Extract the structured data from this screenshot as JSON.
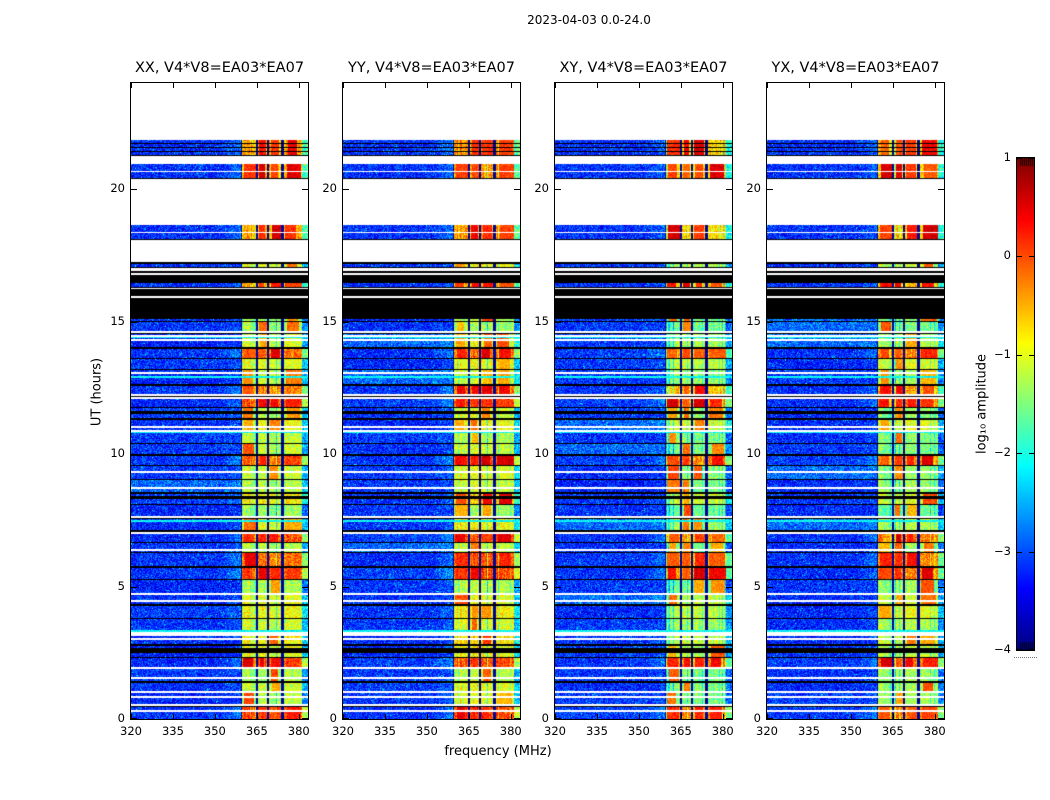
{
  "figure": {
    "title": "2023-04-03 0.0-24.0",
    "background_color": "#ffffff",
    "frame_color": "#000000"
  },
  "chart_data": {
    "type": "heatmap",
    "figure_title": "2023-04-03 0.0-24.0",
    "xlabel": "frequency (MHz)",
    "ylabel": "UT (hours)",
    "x_range_mhz": [
      320,
      383.3
    ],
    "x_ticks_mhz": [
      320,
      335,
      350,
      365,
      380
    ],
    "y_range_hours": [
      0,
      24
    ],
    "y_ticks_hours": [
      0,
      5,
      10,
      15,
      20
    ],
    "panels": [
      {
        "id": "XX",
        "title": "XX, V4*V8=EA03*EA07",
        "band_level_offset": 0,
        "seed": 7
      },
      {
        "id": "YY",
        "title": "YY, V4*V8=EA03*EA07",
        "band_level_offset": 0.12,
        "seed": 13
      },
      {
        "id": "XY",
        "title": "XY, V4*V8=EA03*EA07",
        "band_level_offset": -0.22,
        "seed": 21
      },
      {
        "id": "YX",
        "title": "YX, V4*V8=EA03*EA07",
        "band_level_offset": -0.18,
        "seed": 42
      }
    ],
    "colorbar": {
      "label": "log₁₀ amplitude",
      "range": [
        -4,
        1
      ],
      "ticks": [
        1,
        0,
        -1,
        -2,
        -3,
        -4
      ],
      "colormap": "jet"
    },
    "background": {
      "mean_log10": -3.2,
      "speckle_log10": -2.6
    },
    "rfi_band": {
      "extent_mhz": [
        359.6,
        381.3
      ],
      "subbands_mhz": [
        [
          359.6,
          364.6
        ],
        [
          365.4,
          368.6
        ],
        [
          369.3,
          373.6
        ],
        [
          374.6,
          381.3
        ]
      ],
      "typical_level_log10": -1.1,
      "hot_level_log10": -0.2
    },
    "time_segments": [
      {
        "t0": 0,
        "t1": 15.1,
        "kind": "main"
      },
      {
        "t0": 15.1,
        "t1": 15.88,
        "kind": "black"
      },
      {
        "t0": 15.88,
        "t1": 15.96,
        "kind": "white"
      },
      {
        "t0": 15.96,
        "t1": 16.22,
        "kind": "black"
      },
      {
        "t0": 16.22,
        "t1": 16.3,
        "kind": "white"
      },
      {
        "t0": 16.3,
        "t1": 16.44,
        "kind": "row",
        "hot": true
      },
      {
        "t0": 16.44,
        "t1": 16.74,
        "kind": "black"
      },
      {
        "t0": 16.74,
        "t1": 16.82,
        "kind": "white"
      },
      {
        "t0": 16.82,
        "t1": 16.92,
        "kind": "black"
      },
      {
        "t0": 16.92,
        "t1": 17.04,
        "kind": "white"
      },
      {
        "t0": 17.04,
        "t1": 17.18,
        "kind": "row",
        "hot": false
      },
      {
        "t0": 17.18,
        "t1": 17.26,
        "kind": "black"
      },
      {
        "t0": 17.26,
        "t1": 18.12,
        "kind": "white"
      },
      {
        "t0": 18.12,
        "t1": 18.64,
        "kind": "row2",
        "hot": true
      },
      {
        "t0": 18.64,
        "t1": 20.42,
        "kind": "white"
      },
      {
        "t0": 20.42,
        "t1": 20.95,
        "kind": "row2",
        "hot": true
      },
      {
        "t0": 20.95,
        "t1": 21.28,
        "kind": "white"
      },
      {
        "t0": 21.28,
        "t1": 21.84,
        "kind": "stripes",
        "hot": true
      },
      {
        "t0": 21.84,
        "t1": 24,
        "kind": "white"
      }
    ],
    "scan_length_hours": 0.46,
    "white_gap_times_ut": [
      0.35,
      0.55,
      0.85,
      1.05,
      1.6,
      1.95,
      3.05,
      3.2,
      3.3,
      4.5,
      4.75,
      6.4,
      7.05,
      7.65,
      8.75,
      9.35,
      10.9,
      11.05,
      12.15,
      12.25,
      13.1,
      14.35,
      14.5,
      14.65
    ],
    "black_band_times_ut": [
      [
        2.5,
        2.68
      ],
      [
        8.3,
        8.42
      ],
      [
        11.5,
        11.62
      ]
    ],
    "bright_cyan_rows_ut": [
      3.35,
      7.5,
      10.85,
      12.95,
      14.45
    ],
    "hot_band_times_ut": [
      [
        0.15,
        0.45
      ],
      [
        1.9,
        2.2
      ],
      [
        5.3,
        5.55
      ],
      [
        5.9,
        6.35
      ],
      [
        6.6,
        7.1
      ],
      [
        9.45,
        9.95
      ],
      [
        11.6,
        12.0
      ],
      [
        12.3,
        12.7
      ],
      [
        13.8,
        14.1
      ]
    ],
    "schedule_seed": 5
  }
}
